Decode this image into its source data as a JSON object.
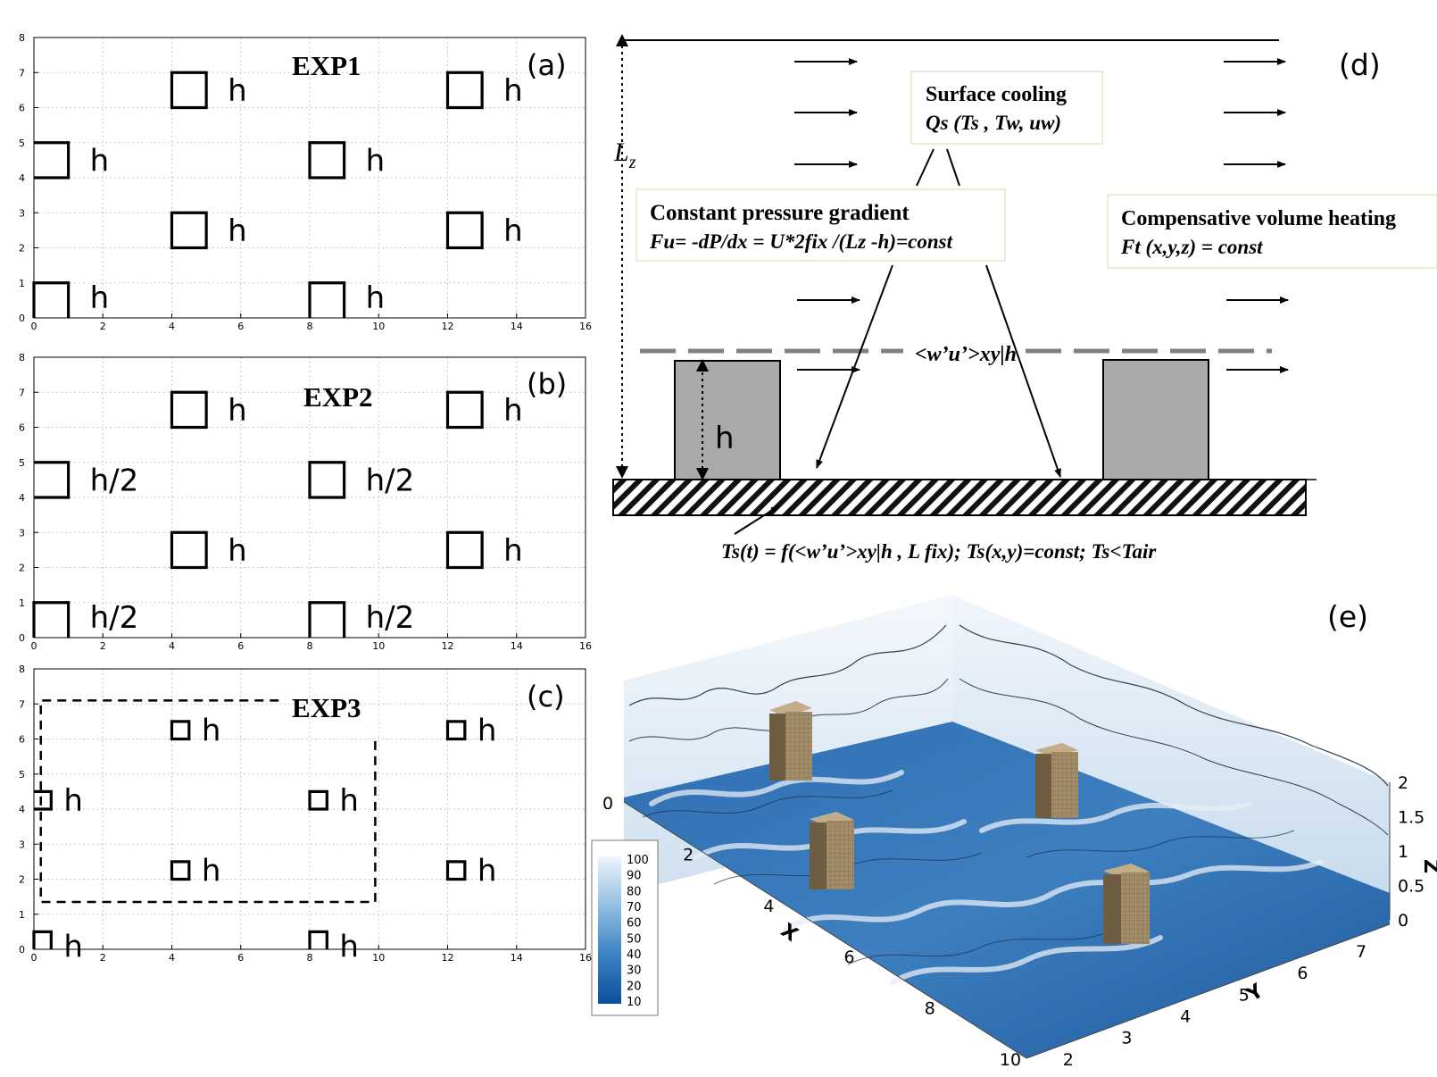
{
  "panels_abc": [
    {
      "label": "(a)",
      "exp": "EXP1",
      "x_ticks": [
        "0",
        "2",
        "4",
        "6",
        "8",
        "10",
        "12",
        "14",
        "16"
      ],
      "y_ticks": [
        "0",
        "1",
        "2",
        "3",
        "4",
        "5",
        "6",
        "7",
        "8"
      ],
      "xlim": [
        0,
        16
      ],
      "ylim": [
        0,
        8
      ],
      "buildings": [
        {
          "x": 0,
          "y": 4,
          "size": 1,
          "label": "h"
        },
        {
          "x": 0,
          "y": 0,
          "size": 1,
          "label": "h"
        },
        {
          "x": 4,
          "y": 6,
          "size": 1,
          "label": "h"
        },
        {
          "x": 4,
          "y": 2,
          "size": 1,
          "label": "h"
        },
        {
          "x": 8,
          "y": 4,
          "size": 1,
          "label": "h"
        },
        {
          "x": 8,
          "y": 0,
          "size": 1,
          "label": "h"
        },
        {
          "x": 12,
          "y": 6,
          "size": 1,
          "label": "h"
        },
        {
          "x": 12,
          "y": 2,
          "size": 1,
          "label": "h"
        }
      ]
    },
    {
      "label": "(b)",
      "exp": "EXP2",
      "x_ticks": [
        "0",
        "2",
        "4",
        "6",
        "8",
        "10",
        "12",
        "14",
        "16"
      ],
      "y_ticks": [
        "0",
        "1",
        "2",
        "3",
        "4",
        "5",
        "6",
        "7",
        "8"
      ],
      "xlim": [
        0,
        16
      ],
      "ylim": [
        0,
        8
      ],
      "buildings": [
        {
          "x": 0,
          "y": 4,
          "size": 1,
          "label": "h/2"
        },
        {
          "x": 0,
          "y": 0,
          "size": 1,
          "label": "h/2"
        },
        {
          "x": 4,
          "y": 6,
          "size": 1,
          "label": "h"
        },
        {
          "x": 4,
          "y": 2,
          "size": 1,
          "label": "h"
        },
        {
          "x": 8,
          "y": 4,
          "size": 1,
          "label": "h/2"
        },
        {
          "x": 8,
          "y": 0,
          "size": 1,
          "label": "h/2"
        },
        {
          "x": 12,
          "y": 6,
          "size": 1,
          "label": "h"
        },
        {
          "x": 12,
          "y": 2,
          "size": 1,
          "label": "h"
        }
      ]
    },
    {
      "label": "(c)",
      "exp": "EXP3",
      "x_ticks": [
        "0",
        "2",
        "4",
        "6",
        "8",
        "10",
        "12",
        "14",
        "16"
      ],
      "y_ticks": [
        "0",
        "1",
        "2",
        "3",
        "4",
        "5",
        "6",
        "7",
        "8"
      ],
      "xlim": [
        0,
        16
      ],
      "ylim": [
        0,
        8
      ],
      "buildings": [
        {
          "x": 0,
          "y": 4,
          "size": 0.5,
          "label": "h"
        },
        {
          "x": 0,
          "y": 0,
          "size": 0.5,
          "label": "h"
        },
        {
          "x": 4,
          "y": 6,
          "size": 0.5,
          "label": "h"
        },
        {
          "x": 4,
          "y": 2,
          "size": 0.5,
          "label": "h"
        },
        {
          "x": 8,
          "y": 4,
          "size": 0.5,
          "label": "h"
        },
        {
          "x": 8,
          "y": 0,
          "size": 0.5,
          "label": "h"
        },
        {
          "x": 12,
          "y": 6,
          "size": 0.5,
          "label": "h"
        },
        {
          "x": 12,
          "y": 2,
          "size": 0.5,
          "label": "h"
        }
      ],
      "dashed_region": {
        "x0": 0.2,
        "x1": 9.9,
        "y0": 1.35,
        "y1": 7.1
      }
    }
  ],
  "panel_d": {
    "label": "(d)",
    "lz_symbol": "L",
    "lz_sub": "z",
    "h_label": "h",
    "cooling_title": "Surface cooling",
    "cooling_formula": "Qs (Ts , Tw, uw)",
    "pressure_title": "Constant pressure gradient",
    "pressure_formula": "Fu= -dP/dx  = U*2fix /(Lz -h)=const",
    "heating_title": "Compensative volume heating",
    "heating_formula": "Ft (x,y,z) = const",
    "flux_label": "<w’u’>xy|h",
    "bottom_formula": "Ts(t) = f(<w’u’>xy|h , L fix);    Ts(x,y)=const;     Ts<Tair"
  },
  "panel_e": {
    "label": "(e)",
    "x_axis": "X",
    "y_axis": "Y",
    "z_axis": "Z",
    "x_ticks": [
      "0",
      "2",
      "4",
      "6",
      "8",
      "10"
    ],
    "y_ticks": [
      "2",
      "3",
      "4",
      "5",
      "6",
      "7"
    ],
    "z_ticks": [
      "0",
      "0.5",
      "1",
      "1.5",
      "2"
    ],
    "colorbar_ticks": [
      "100",
      "90",
      "80",
      "70",
      "60",
      "50",
      "40",
      "30",
      "20",
      "10"
    ],
    "colorbar_range": [
      10,
      100
    ],
    "colors": {
      "low": "#0b4f9c",
      "mid": "#5a9bd0",
      "high": "#e8f2fb",
      "building": "#a08a68"
    }
  }
}
